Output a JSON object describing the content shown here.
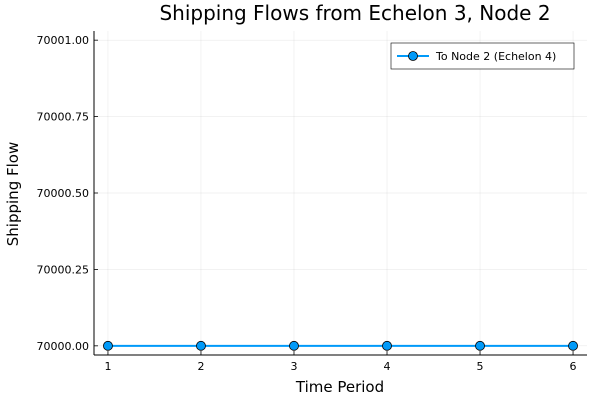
{
  "chart_data": {
    "type": "line",
    "title": "Shipping Flows from Echelon 3, Node 2",
    "xlabel": "Time Period",
    "ylabel": "Shipping Flow",
    "x": [
      1,
      2,
      3,
      4,
      5,
      6
    ],
    "x_ticks": [
      "1",
      "2",
      "3",
      "4",
      "5",
      "6"
    ],
    "xlim": [
      0.85,
      6.15
    ],
    "ylim": [
      69999.97,
      70001.03
    ],
    "y_ticks": [
      70000.0,
      70000.25,
      70000.5,
      70000.75,
      70001.0
    ],
    "y_tick_labels": [
      "70000.00",
      "70000.25",
      "70000.50",
      "70000.75",
      "70001.00"
    ],
    "grid": true,
    "legend_position": "top-right",
    "series": [
      {
        "name": "To Node 2 (Echelon 4)",
        "values": [
          70000.0,
          70000.0,
          70000.0,
          70000.0,
          70000.0,
          70000.0
        ],
        "color": "#009af9",
        "marker": "circle"
      }
    ]
  }
}
